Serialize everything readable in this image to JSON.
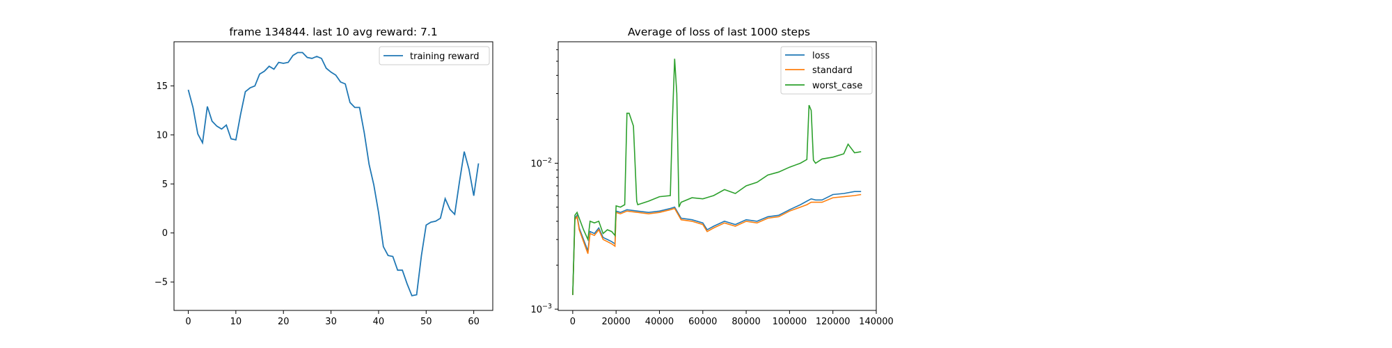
{
  "chart_data": [
    {
      "type": "line",
      "title": "frame 134844. last 10 avg reward: 7.1",
      "xlabel": "",
      "ylabel": "",
      "xlim": [
        -3,
        64
      ],
      "ylim": [
        -7.9,
        19.5
      ],
      "x_ticks": [
        0,
        10,
        20,
        30,
        40,
        50,
        60
      ],
      "x_tick_labels": [
        "0",
        "10",
        "20",
        "30",
        "40",
        "50",
        "60"
      ],
      "y_ticks": [
        -5,
        0,
        5,
        10,
        15
      ],
      "y_tick_labels": [
        "−5",
        "0",
        "5",
        "10",
        "15"
      ],
      "legend_position": "top-right",
      "series": [
        {
          "name": "training reward",
          "color": "#1f77b4",
          "x": [
            0,
            1,
            2,
            3,
            4,
            5,
            6,
            7,
            8,
            9,
            10,
            11,
            12,
            13,
            14,
            15,
            16,
            17,
            18,
            19,
            20,
            21,
            22,
            23,
            24,
            25,
            26,
            27,
            28,
            29,
            30,
            31,
            32,
            33,
            34,
            35,
            36,
            37,
            38,
            39,
            40,
            41,
            42,
            43,
            44,
            45,
            46,
            47,
            48,
            49,
            50,
            51,
            52,
            53,
            54,
            55,
            56,
            57,
            58,
            59,
            60,
            61
          ],
          "y": [
            14.6,
            12.8,
            10.1,
            9.2,
            12.9,
            11.4,
            10.9,
            10.6,
            11.0,
            9.6,
            9.5,
            12.1,
            14.4,
            14.8,
            15.0,
            16.2,
            16.5,
            17.0,
            16.7,
            17.4,
            17.3,
            17.4,
            18.1,
            18.4,
            18.4,
            17.9,
            17.8,
            18.0,
            17.8,
            16.8,
            16.4,
            16.1,
            15.4,
            15.2,
            13.3,
            12.8,
            12.8,
            10.2,
            7.0,
            4.9,
            2.1,
            -1.4,
            -2.3,
            -2.4,
            -3.8,
            -3.8,
            -5.2,
            -6.4,
            -6.3,
            -2.3,
            0.8,
            1.1,
            1.2,
            1.5,
            3.5,
            2.4,
            1.9,
            5.2,
            8.3,
            6.5,
            3.8,
            7.1
          ]
        }
      ]
    },
    {
      "type": "line",
      "title": "Average of loss of last 1000 steps",
      "xlabel": "",
      "ylabel": "",
      "xlim": [
        -6700,
        140000
      ],
      "ylim": [
        0.00098,
        0.068
      ],
      "y_scale": "log",
      "x_ticks": [
        0,
        20000,
        40000,
        60000,
        80000,
        100000,
        120000,
        140000
      ],
      "x_tick_labels": [
        "0",
        "20000",
        "40000",
        "60000",
        "80000",
        "100000",
        "120000",
        "140000"
      ],
      "y_ticks": [
        0.001,
        0.01
      ],
      "legend_position": "top-right",
      "series": [
        {
          "name": "loss",
          "color": "#1f77b4",
          "x": [
            0,
            1000,
            2000,
            3000,
            5000,
            7000,
            8000,
            10000,
            12000,
            14000,
            16000,
            18000,
            19500,
            20000,
            22000,
            25000,
            30000,
            35000,
            40000,
            45000,
            47000,
            50000,
            55000,
            60000,
            62000,
            65000,
            70000,
            75000,
            80000,
            85000,
            90000,
            95000,
            100000,
            105000,
            108000,
            110000,
            112000,
            115000,
            120000,
            125000,
            130000,
            133000
          ],
          "y": [
            0.00125,
            0.0042,
            0.0044,
            0.0036,
            0.003,
            0.0025,
            0.0034,
            0.0033,
            0.0036,
            0.0031,
            0.003,
            0.0029,
            0.0028,
            0.0047,
            0.0046,
            0.0048,
            0.0047,
            0.0046,
            0.0047,
            0.0049,
            0.005,
            0.0042,
            0.0041,
            0.0039,
            0.0035,
            0.0037,
            0.004,
            0.0038,
            0.0041,
            0.004,
            0.0043,
            0.0044,
            0.0048,
            0.0052,
            0.0055,
            0.0057,
            0.0056,
            0.0056,
            0.0061,
            0.0062,
            0.0064,
            0.0064
          ]
        },
        {
          "name": "standard",
          "color": "#ff7f0e",
          "x": [
            0,
            1000,
            2000,
            3000,
            5000,
            7000,
            8000,
            10000,
            12000,
            14000,
            16000,
            18000,
            19500,
            20000,
            22000,
            25000,
            30000,
            35000,
            40000,
            45000,
            47000,
            50000,
            55000,
            60000,
            62000,
            65000,
            70000,
            75000,
            80000,
            85000,
            90000,
            95000,
            100000,
            105000,
            108000,
            110000,
            112000,
            115000,
            120000,
            125000,
            130000,
            133000
          ],
          "y": [
            0.00125,
            0.0041,
            0.0043,
            0.0035,
            0.0029,
            0.0024,
            0.0033,
            0.0032,
            0.0035,
            0.003,
            0.0029,
            0.0028,
            0.0027,
            0.0046,
            0.0045,
            0.0047,
            0.0046,
            0.0045,
            0.0046,
            0.0048,
            0.0049,
            0.0041,
            0.004,
            0.0038,
            0.0034,
            0.0036,
            0.0039,
            0.0037,
            0.004,
            0.0039,
            0.0042,
            0.0043,
            0.0047,
            0.005,
            0.0052,
            0.0054,
            0.0054,
            0.0054,
            0.0058,
            0.0059,
            0.006,
            0.0061
          ]
        },
        {
          "name": "worst_case",
          "color": "#2ca02c",
          "x": [
            0,
            1000,
            2000,
            3000,
            5000,
            7000,
            8000,
            10000,
            12000,
            14000,
            16000,
            18000,
            19500,
            20000,
            22000,
            24000,
            25000,
            26000,
            28000,
            29500,
            30000,
            35000,
            40000,
            45000,
            46000,
            47000,
            48000,
            49000,
            50000,
            55000,
            60000,
            65000,
            70000,
            75000,
            80000,
            85000,
            90000,
            95000,
            100000,
            105000,
            108000,
            109000,
            110000,
            111000,
            112000,
            115000,
            120000,
            125000,
            127000,
            130000,
            133000
          ],
          "y": [
            0.00125,
            0.0044,
            0.0046,
            0.0042,
            0.0035,
            0.003,
            0.004,
            0.0039,
            0.004,
            0.0033,
            0.0035,
            0.0034,
            0.0032,
            0.0051,
            0.005,
            0.0052,
            0.022,
            0.022,
            0.018,
            0.0055,
            0.0052,
            0.0055,
            0.0059,
            0.006,
            0.02,
            0.052,
            0.03,
            0.005,
            0.0054,
            0.0058,
            0.0057,
            0.006,
            0.0066,
            0.0062,
            0.007,
            0.0074,
            0.0083,
            0.0087,
            0.0094,
            0.01,
            0.0106,
            0.025,
            0.023,
            0.0105,
            0.01,
            0.0107,
            0.011,
            0.0116,
            0.0135,
            0.0118,
            0.012
          ]
        }
      ]
    }
  ]
}
